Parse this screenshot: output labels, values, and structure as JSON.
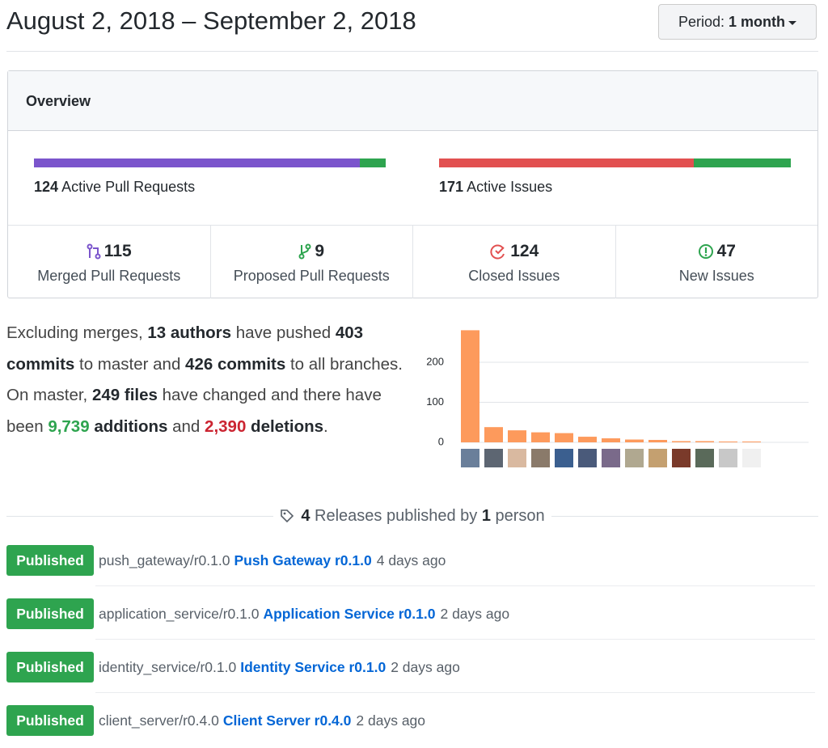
{
  "header": {
    "title": "August 2, 2018 – September 2, 2018",
    "period_label": "Period:",
    "period_value": "1 month"
  },
  "overview": {
    "title": "Overview",
    "pull_requests": {
      "count": 124,
      "label": "Active Pull Requests"
    },
    "issues": {
      "count": 171,
      "label": "Active Issues"
    },
    "stats": [
      {
        "value": 115,
        "label": "Merged Pull Requests",
        "color": "#7b55cc"
      },
      {
        "value": 9,
        "label": "Proposed Pull Requests",
        "color": "#2ea44f"
      },
      {
        "value": 124,
        "label": "Closed Issues",
        "color": "#e25050"
      },
      {
        "value": 47,
        "label": "New Issues",
        "color": "#2ea44f"
      }
    ]
  },
  "summary": [
    {
      "text": "Excluding merges, "
    },
    {
      "text": "13 authors",
      "bold": true
    },
    {
      "text": " have pushed "
    },
    {
      "text": "403 commits",
      "bold": true
    },
    {
      "text": " to master and "
    },
    {
      "text": "426 commits",
      "bold": true
    },
    {
      "text": " to all branches. On master, "
    },
    {
      "text": "249 files",
      "bold": true
    },
    {
      "text": " have changed and there have been "
    },
    {
      "text": "9,739",
      "bold": true,
      "color": "#2ea44f"
    },
    {
      "text": " additions",
      "bold": true
    },
    {
      "text": " and "
    },
    {
      "text": "2,390",
      "bold": true,
      "color": "#cb2431"
    },
    {
      "text": " deletions",
      "bold": true
    },
    {
      "text": "."
    }
  ],
  "chart_data": {
    "type": "bar",
    "categories": [
      null,
      null,
      null,
      null,
      null,
      null,
      null,
      null,
      null,
      null,
      null,
      null,
      null
    ],
    "values": [
      280,
      38,
      30,
      25,
      23,
      14,
      10,
      7,
      6,
      3,
      3,
      2,
      2
    ],
    "color": "#fd9a5c",
    "ylim": [
      0,
      280
    ],
    "yticks": [
      0,
      100,
      200
    ],
    "grid": true
  },
  "releases": {
    "header": [
      {
        "text": "4",
        "bold": true
      },
      {
        "text": " Releases published by "
      },
      {
        "text": "1",
        "bold": true
      },
      {
        "text": " person"
      }
    ],
    "items": [
      {
        "status": "Published",
        "tag": "push_gateway/r0.1.0",
        "name": "Push Gateway r0.1.0",
        "time": "4 days ago"
      },
      {
        "status": "Published",
        "tag": "application_service/r0.1.0",
        "name": "Application Service r0.1.0",
        "time": "2 days ago"
      },
      {
        "status": "Published",
        "tag": "identity_service/r0.1.0",
        "name": "Identity Service r0.1.0",
        "time": "2 days ago"
      },
      {
        "status": "Published",
        "tag": "client_server/r0.4.0",
        "name": "Client Server r0.4.0",
        "time": "2 days ago"
      }
    ]
  }
}
